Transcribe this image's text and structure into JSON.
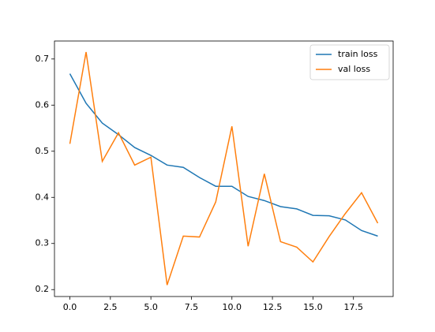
{
  "chart_data": {
    "type": "line",
    "x": [
      0,
      1,
      2,
      3,
      4,
      5,
      6,
      7,
      8,
      9,
      10,
      11,
      12,
      13,
      14,
      15,
      16,
      17,
      18,
      19
    ],
    "series": [
      {
        "name": "train loss",
        "color": "#1f77b4",
        "values": [
          0.668,
          0.604,
          0.561,
          0.536,
          0.508,
          0.491,
          0.47,
          0.465,
          0.443,
          0.424,
          0.424,
          0.402,
          0.393,
          0.38,
          0.375,
          0.361,
          0.36,
          0.351,
          0.328,
          0.316
        ]
      },
      {
        "name": "val loss",
        "color": "#ff7f0e",
        "values": [
          0.516,
          0.715,
          0.478,
          0.54,
          0.47,
          0.487,
          0.21,
          0.316,
          0.314,
          0.39,
          0.554,
          0.294,
          0.451,
          0.304,
          0.292,
          0.26,
          0.315,
          0.365,
          0.41,
          0.344
        ]
      }
    ],
    "xlim": [
      -0.95,
      19.95
    ],
    "xticks": [
      {
        "value": 0,
        "label": "0.0"
      },
      2.5,
      {
        "value": 5,
        "label": "5.0"
      },
      7.5,
      {
        "value": 10,
        "label": "10.0"
      },
      12.5,
      {
        "value": 15,
        "label": "15.0"
      },
      17.5
    ],
    "ylim": [
      0.185,
      0.739
    ],
    "yticks": [
      0.2,
      0.3,
      0.4,
      0.5,
      0.6,
      0.7
    ],
    "legend": "upper right"
  }
}
